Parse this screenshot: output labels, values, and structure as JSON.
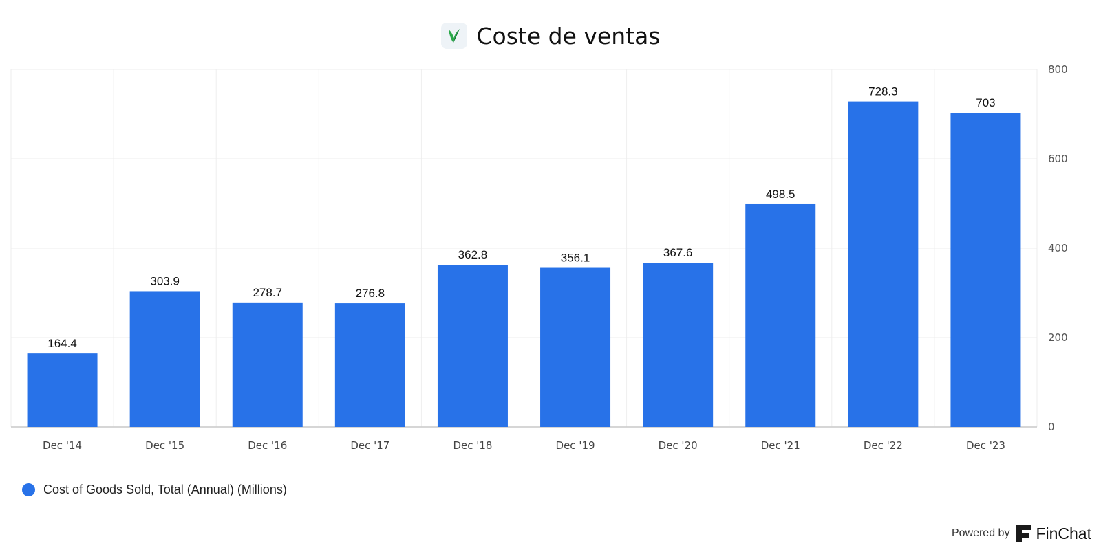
{
  "header": {
    "logo_icon": "v-leaf-logo-icon",
    "title": "Coste de ventas"
  },
  "chart_data": {
    "type": "bar",
    "title": "Coste de ventas",
    "categories": [
      "Dec '14",
      "Dec '15",
      "Dec '16",
      "Dec '17",
      "Dec '18",
      "Dec '19",
      "Dec '20",
      "Dec '21",
      "Dec '22",
      "Dec '23"
    ],
    "series": [
      {
        "name": "Cost of Goods Sold, Total (Annual) (Millions)",
        "values": [
          164.4,
          303.9,
          278.7,
          276.8,
          362.8,
          356.1,
          367.6,
          498.5,
          728.3,
          703
        ],
        "labels": [
          "164.4",
          "303.9",
          "278.7",
          "276.8",
          "362.8",
          "356.1",
          "367.6",
          "498.5",
          "728.3",
          "703"
        ],
        "color": "#2872e8"
      }
    ],
    "ylim": [
      0,
      800
    ],
    "yticks": [
      0,
      200,
      400,
      600,
      800
    ],
    "y_axis_side": "right",
    "grid": true,
    "legend_position": "bottom-left",
    "xlabel": "",
    "ylabel": ""
  },
  "footer": {
    "powered_by": "Powered by",
    "brand_icon": "finchat-logo-icon",
    "brand": "FinChat"
  }
}
